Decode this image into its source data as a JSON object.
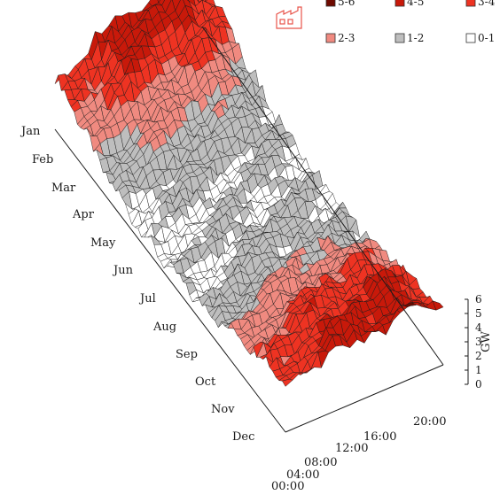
{
  "chart_data": {
    "type": "surface3d",
    "zlabel": "GW",
    "zlim": [
      0,
      6
    ],
    "z_ticks": [
      "0",
      "1",
      "2",
      "3",
      "4",
      "5",
      "6"
    ],
    "months": [
      "Jan",
      "Feb",
      "Mar",
      "Apr",
      "May",
      "Jun",
      "Jul",
      "Aug",
      "Sep",
      "Oct",
      "Nov",
      "Dec"
    ],
    "hour_ticks": [
      "00:00",
      "04:00",
      "08:00",
      "12:00",
      "16:00",
      "20:00"
    ],
    "monthly_level": [
      4.3,
      3.6,
      2.2,
      1.4,
      1.0,
      0.9,
      1.1,
      1.4,
      2.2,
      3.1,
      3.8,
      4.1
    ],
    "hourly_shape": [
      0.85,
      0.82,
      0.8,
      0.8,
      0.82,
      0.88,
      0.98,
      1.08,
      1.12,
      1.12,
      1.1,
      1.08,
      1.06,
      1.05,
      1.04,
      1.05,
      1.1,
      1.18,
      1.2,
      1.16,
      1.08,
      0.98,
      0.92,
      0.88
    ],
    "legend": [
      {
        "label": "5-6",
        "color": "#6e0a00"
      },
      {
        "label": "4-5",
        "color": "#c8190a"
      },
      {
        "label": "3-4",
        "color": "#ee3322"
      },
      {
        "label": "2-3",
        "color": "#f08a80"
      },
      {
        "label": "1-2",
        "color": "#bebebe"
      },
      {
        "label": "0-1",
        "color": "#ffffff"
      }
    ],
    "icon": "factory-icon"
  }
}
